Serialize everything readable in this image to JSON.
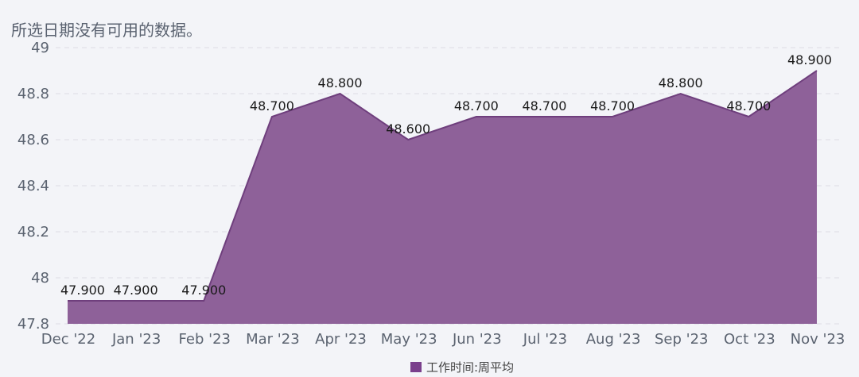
{
  "notice": "所选日期没有可用的数据。",
  "chart_data": {
    "type": "area",
    "categories": [
      "Dec '22",
      "Jan '23",
      "Feb '23",
      "Mar '23",
      "Apr '23",
      "May '23",
      "Jun '23",
      "Jul '23",
      "Aug '23",
      "Sep '23",
      "Oct '23",
      "Nov '23"
    ],
    "series": [
      {
        "name": "工作时间:周平均",
        "values": [
          47.9,
          47.9,
          47.9,
          48.7,
          48.8,
          48.6,
          48.7,
          48.7,
          48.7,
          48.8,
          48.7,
          48.9
        ],
        "labels": [
          "47.900",
          "47.900",
          "47.900",
          "48.700",
          "48.800",
          "48.600",
          "48.700",
          "48.700",
          "48.700",
          "48.800",
          "48.700",
          "48.900"
        ]
      }
    ],
    "ylim": [
      47.8,
      49
    ],
    "yticks": [
      47.8,
      48,
      48.2,
      48.4,
      48.6,
      48.8,
      49
    ],
    "ytick_labels": [
      "47.8",
      "48",
      "48.2",
      "48.4",
      "48.6",
      "48.8",
      "49"
    ],
    "grid": true,
    "legend_position": "bottom-center",
    "colors": {
      "fill": "#8e6199",
      "stroke": "#6f3f7d",
      "legend_swatch": "#7a3f8c"
    }
  }
}
